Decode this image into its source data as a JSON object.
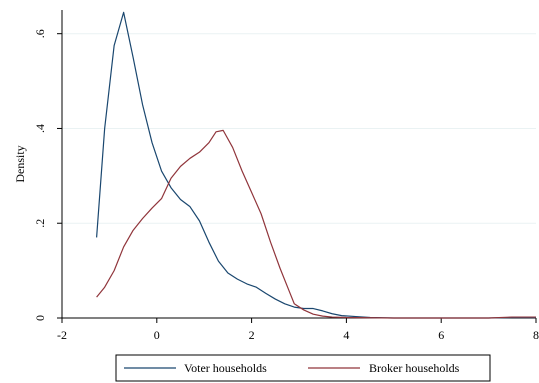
{
  "chart_data": {
    "type": "line",
    "title": "",
    "xlabel": "",
    "ylabel": "Density",
    "xlim": [
      -2,
      8
    ],
    "ylim": [
      0,
      0.65
    ],
    "grid": true,
    "legend_position": "bottom",
    "x_ticks": [
      {
        "value": -2,
        "label": "-2"
      },
      {
        "value": 0,
        "label": "0"
      },
      {
        "value": 2,
        "label": "2"
      },
      {
        "value": 4,
        "label": "4"
      },
      {
        "value": 6,
        "label": "6"
      },
      {
        "value": 8,
        "label": "8"
      }
    ],
    "y_ticks": [
      {
        "value": 0,
        "label": "0"
      },
      {
        "value": 0.2,
        "label": ".2"
      },
      {
        "value": 0.4,
        "label": ".4"
      },
      {
        "value": 0.6,
        "label": ".6"
      }
    ],
    "series": [
      {
        "name": "Voter households",
        "color": "#1a476f",
        "points": [
          [
            -1.27,
            0.17
          ],
          [
            -1.1,
            0.4
          ],
          [
            -0.9,
            0.575
          ],
          [
            -0.7,
            0.645
          ],
          [
            -0.5,
            0.55
          ],
          [
            -0.3,
            0.45
          ],
          [
            -0.1,
            0.37
          ],
          [
            0.1,
            0.31
          ],
          [
            0.3,
            0.275
          ],
          [
            0.5,
            0.25
          ],
          [
            0.7,
            0.235
          ],
          [
            0.9,
            0.205
          ],
          [
            1.1,
            0.16
          ],
          [
            1.3,
            0.12
          ],
          [
            1.5,
            0.095
          ],
          [
            1.7,
            0.082
          ],
          [
            1.9,
            0.072
          ],
          [
            2.1,
            0.065
          ],
          [
            2.3,
            0.052
          ],
          [
            2.5,
            0.04
          ],
          [
            2.7,
            0.03
          ],
          [
            2.9,
            0.023
          ],
          [
            3.1,
            0.02
          ],
          [
            3.3,
            0.02
          ],
          [
            3.5,
            0.015
          ],
          [
            3.7,
            0.009
          ],
          [
            3.9,
            0.005
          ],
          [
            4.2,
            0.003
          ],
          [
            4.5,
            0.001
          ],
          [
            5.0,
            0.0
          ],
          [
            6.0,
            0.0
          ],
          [
            7.0,
            0.0
          ],
          [
            7.5,
            0.001
          ],
          [
            8.0,
            0.001
          ]
        ]
      },
      {
        "name": "Broker households",
        "color": "#90353b",
        "points": [
          [
            -1.27,
            0.044
          ],
          [
            -1.1,
            0.065
          ],
          [
            -0.9,
            0.1
          ],
          [
            -0.7,
            0.15
          ],
          [
            -0.5,
            0.185
          ],
          [
            -0.3,
            0.21
          ],
          [
            -0.1,
            0.232
          ],
          [
            0.1,
            0.252
          ],
          [
            0.3,
            0.295
          ],
          [
            0.5,
            0.32
          ],
          [
            0.7,
            0.337
          ],
          [
            0.9,
            0.35
          ],
          [
            1.1,
            0.37
          ],
          [
            1.25,
            0.393
          ],
          [
            1.4,
            0.396
          ],
          [
            1.6,
            0.36
          ],
          [
            1.8,
            0.31
          ],
          [
            2.0,
            0.265
          ],
          [
            2.2,
            0.22
          ],
          [
            2.4,
            0.16
          ],
          [
            2.6,
            0.105
          ],
          [
            2.8,
            0.055
          ],
          [
            2.9,
            0.03
          ],
          [
            3.1,
            0.017
          ],
          [
            3.3,
            0.008
          ],
          [
            3.5,
            0.004
          ],
          [
            3.7,
            0.002
          ],
          [
            4.0,
            0.001
          ],
          [
            5.0,
            0.0
          ],
          [
            6.0,
            0.0
          ],
          [
            7.0,
            0.0
          ],
          [
            7.5,
            0.002
          ],
          [
            8.0,
            0.002
          ]
        ]
      }
    ]
  }
}
